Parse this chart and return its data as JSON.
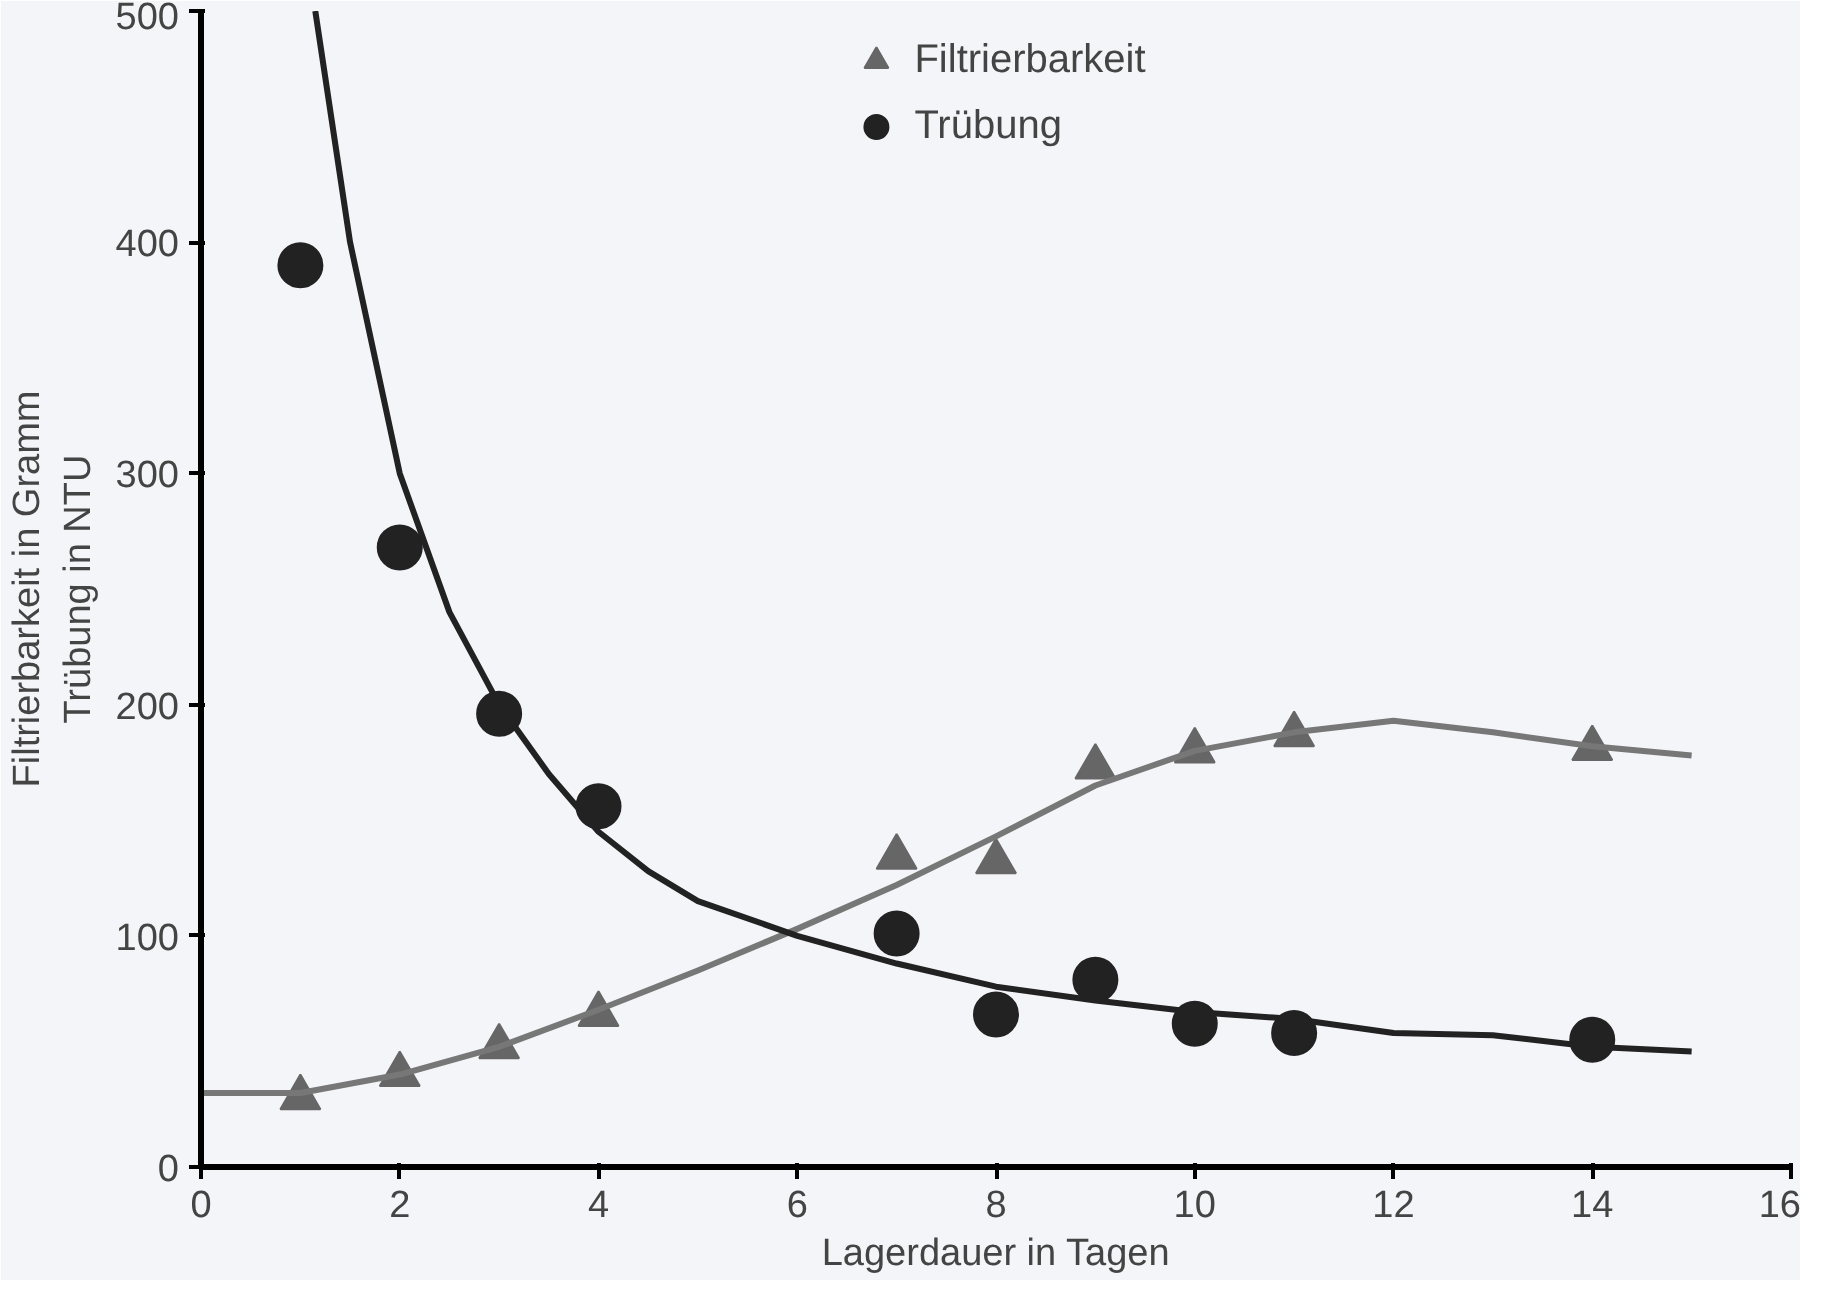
{
  "chart_data": {
    "type": "scatter",
    "xlabel": "Lagerdauer in Tagen",
    "ylabel": "Filtrierbarkeit in Gramm\nTrübung in NTU",
    "xlim": [
      0,
      16
    ],
    "ylim": [
      0,
      500
    ],
    "xticks": [
      0,
      2,
      4,
      6,
      8,
      10,
      12,
      14,
      16
    ],
    "yticks": [
      0,
      100,
      200,
      300,
      400,
      500
    ],
    "grid": false,
    "legend": "top",
    "series": [
      {
        "name": "Filtrierbarkeit",
        "color": "#666666",
        "marker": "triangle",
        "x": [
          1,
          2,
          3,
          4,
          7,
          8,
          9,
          10,
          11,
          14
        ],
        "values": [
          30,
          40,
          52,
          66,
          134,
          132,
          173,
          180,
          187,
          181
        ]
      },
      {
        "name": "Trübung",
        "color": "#222222",
        "marker": "circle",
        "x": [
          1,
          2,
          3,
          4,
          7,
          8,
          9,
          10,
          11,
          14
        ],
        "values": [
          390,
          268,
          196,
          156,
          101,
          66,
          81,
          62,
          58,
          55
        ]
      },
      {
        "type": "line",
        "color": "#777777",
        "marker": "none",
        "x": [
          0,
          1,
          2,
          3,
          4,
          5,
          6,
          7,
          8,
          9,
          10,
          11,
          12,
          13,
          14,
          15
        ],
        "values": [
          32,
          32,
          40,
          52,
          68,
          85,
          103,
          122,
          143,
          165,
          180,
          188,
          193,
          188,
          182,
          178
        ]
      },
      {
        "type": "line",
        "color": "#222222",
        "marker": "none",
        "x": [
          1.15,
          1.5,
          2,
          2.5,
          3,
          3.5,
          4,
          4.5,
          5,
          6,
          7,
          8,
          9,
          10,
          11,
          12,
          13,
          14,
          15
        ],
        "values": [
          500,
          400,
          300,
          240,
          200,
          170,
          145,
          128,
          115,
          100,
          88,
          78,
          72,
          67,
          64,
          58,
          57,
          52,
          50
        ]
      }
    ]
  }
}
